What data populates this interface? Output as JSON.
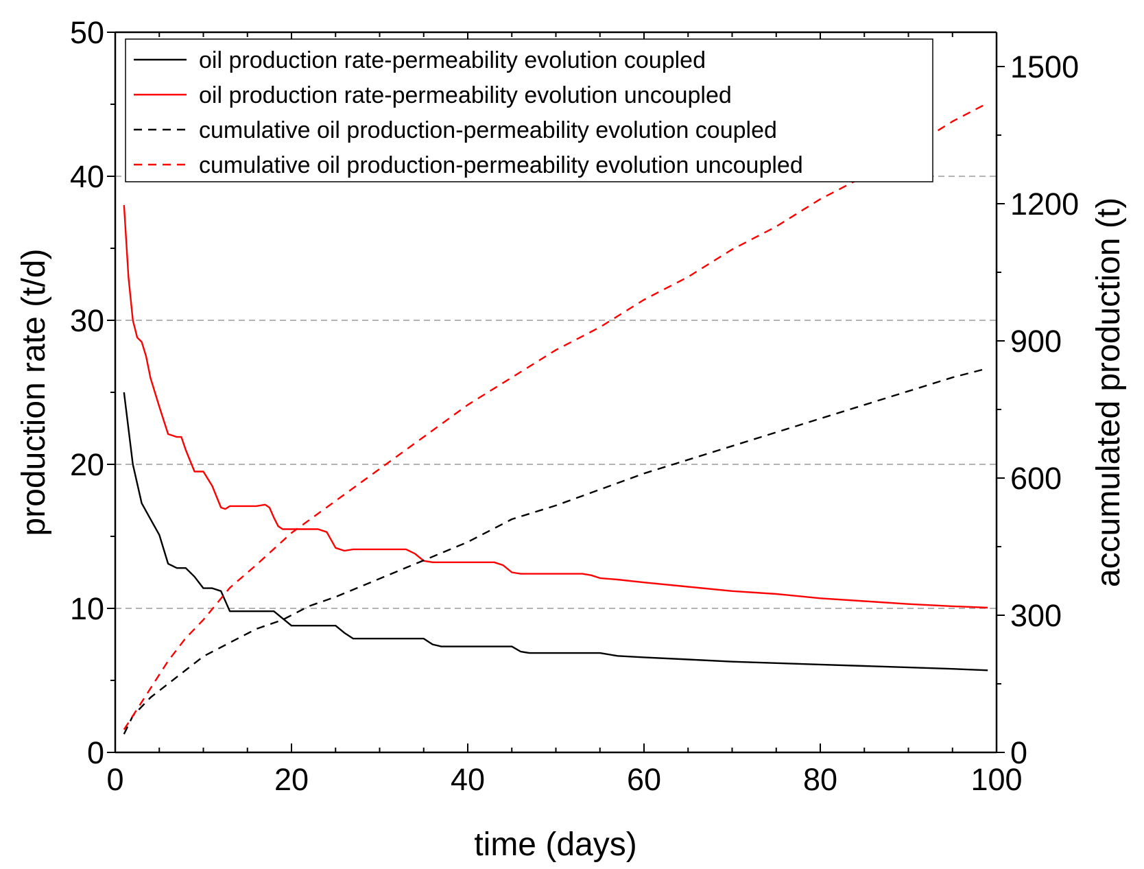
{
  "chart_data": {
    "type": "line",
    "title": "",
    "xlabel": "time (days)",
    "ylabel": "production rate (t/d)",
    "y2label": "accumulated production (t)",
    "xlim": [
      0,
      100
    ],
    "ylim": [
      0,
      50
    ],
    "y2lim": [
      0,
      1575
    ],
    "x_ticks": [
      0,
      20,
      40,
      60,
      80,
      100
    ],
    "y_ticks": [
      0,
      10,
      20,
      30,
      40,
      50
    ],
    "y2_ticks": [
      0,
      300,
      600,
      900,
      1200,
      1500
    ],
    "gridlines_y": [
      10,
      20,
      30,
      40
    ],
    "legend_position": "top-left",
    "series": [
      {
        "name": "oil production rate-permeability evolution coupled",
        "axis": "left",
        "color": "#000000",
        "dash": "solid",
        "x": [
          1,
          2,
          3,
          4,
          5,
          6,
          7,
          8,
          9,
          10,
          11,
          12,
          13,
          14,
          16,
          17,
          18,
          19,
          20,
          22,
          24,
          25,
          26,
          27,
          29,
          31,
          33,
          35,
          36,
          37,
          40,
          43,
          45,
          46,
          47,
          50,
          53,
          55,
          57,
          60,
          65,
          70,
          75,
          80,
          85,
          90,
          95,
          99
        ],
        "values": [
          25,
          20,
          17.3,
          16.2,
          15.1,
          13.1,
          12.8,
          12.8,
          12.2,
          11.4,
          11.4,
          11.2,
          9.8,
          9.8,
          9.8,
          9.8,
          9.8,
          9.3,
          8.8,
          8.8,
          8.8,
          8.8,
          8.3,
          7.9,
          7.9,
          7.9,
          7.9,
          7.9,
          7.5,
          7.35,
          7.35,
          7.35,
          7.35,
          7.0,
          6.9,
          6.9,
          6.9,
          6.9,
          6.7,
          6.6,
          6.45,
          6.3,
          6.2,
          6.1,
          6.0,
          5.9,
          5.8,
          5.7
        ]
      },
      {
        "name": "oil production rate-permeability evolution uncoupled",
        "axis": "left",
        "color": "#ff0000",
        "dash": "solid",
        "x": [
          1,
          1.5,
          2,
          2.5,
          3,
          3.5,
          4,
          5,
          6,
          7,
          7.5,
          8,
          9,
          10,
          11,
          12,
          12.5,
          13,
          14,
          15,
          16,
          17,
          17.5,
          18,
          18.5,
          19,
          20,
          21,
          22,
          23,
          24,
          25,
          26,
          27,
          28,
          30,
          32,
          33,
          34,
          35,
          36,
          38,
          40,
          42,
          43,
          44,
          45,
          46,
          48,
          50,
          52,
          53,
          54,
          55,
          57,
          60,
          65,
          70,
          75,
          80,
          85,
          90,
          95,
          99
        ],
        "values": [
          38,
          33,
          30,
          28.8,
          28.5,
          27.5,
          26,
          24,
          22.1,
          21.9,
          21.9,
          21,
          19.5,
          19.5,
          18.5,
          17.0,
          16.9,
          17.1,
          17.1,
          17.1,
          17.1,
          17.2,
          17.0,
          16.3,
          15.7,
          15.5,
          15.5,
          15.5,
          15.5,
          15.5,
          15.3,
          14.2,
          14.0,
          14.1,
          14.1,
          14.1,
          14.1,
          14.1,
          13.8,
          13.3,
          13.2,
          13.2,
          13.2,
          13.2,
          13.2,
          13.0,
          12.5,
          12.4,
          12.4,
          12.4,
          12.4,
          12.4,
          12.3,
          12.1,
          12.0,
          11.8,
          11.5,
          11.2,
          11.0,
          10.7,
          10.5,
          10.3,
          10.15,
          10.05
        ]
      },
      {
        "name": "cumulative oil production-permeability evolution coupled",
        "axis": "right",
        "color": "#000000",
        "dash": "dashed",
        "x": [
          1,
          2,
          4,
          6,
          8,
          10,
          13,
          16,
          19,
          22,
          25,
          30,
          35,
          40,
          45,
          50,
          55,
          60,
          65,
          70,
          75,
          80,
          85,
          90,
          95,
          99
        ],
        "values": [
          40,
          80,
          120,
          150,
          180,
          210,
          240,
          270,
          290,
          320,
          340,
          380,
          420,
          460,
          510,
          540,
          575,
          610,
          640,
          670,
          700,
          730,
          760,
          790,
          820,
          840
        ]
      },
      {
        "name": "cumulative oil production-permeability evolution uncoupled",
        "axis": "right",
        "color": "#ff0000",
        "dash": "dashed",
        "x": [
          1,
          2,
          4,
          6,
          8,
          10,
          13,
          16,
          20,
          25,
          30,
          35,
          40,
          45,
          50,
          55,
          60,
          65,
          70,
          75,
          80,
          85,
          90,
          95,
          99
        ],
        "values": [
          50,
          80,
          140,
          200,
          250,
          290,
          360,
          410,
          480,
          550,
          620,
          690,
          760,
          820,
          880,
          930,
          990,
          1040,
          1100,
          1150,
          1210,
          1260,
          1320,
          1380,
          1420
        ]
      }
    ]
  }
}
